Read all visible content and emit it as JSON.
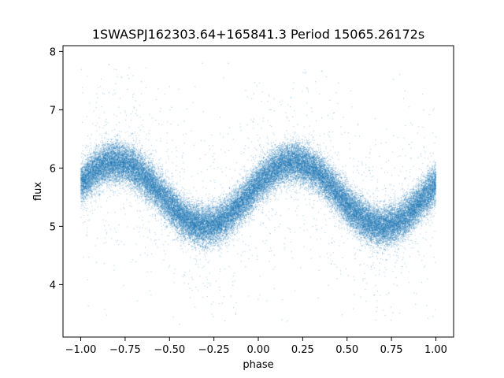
{
  "chart_data": {
    "type": "scatter",
    "title": "1SWASPJ162303.64+165841.3 Period 15065.26172s",
    "xlabel": "phase",
    "ylabel": "flux",
    "xlim": [
      -1.1,
      1.1
    ],
    "ylim": [
      3.1,
      8.1
    ],
    "xticks": [
      -1.0,
      -0.75,
      -0.5,
      -0.25,
      0.0,
      0.25,
      0.5,
      0.75,
      1.0
    ],
    "xtick_labels": [
      "−1.00",
      "−0.75",
      "−0.50",
      "−0.25",
      "0.00",
      "0.25",
      "0.50",
      "0.75",
      "1.00"
    ],
    "yticks": [
      4,
      5,
      6,
      7,
      8
    ],
    "ytick_labels": [
      "4",
      "5",
      "6",
      "7",
      "8"
    ],
    "grid": false,
    "marker_color": "#1f77b4",
    "phase_range": [
      -1.0,
      1.0
    ],
    "model": {
      "description_of_trend": "sinusoidal light curve, two cycles over phase -1 to 1",
      "mean_flux": 5.55,
      "amplitude": 0.55,
      "peak_phase": 0.2,
      "cycles": 2,
      "core_scatter": 0.17,
      "outlier_fraction": 0.04,
      "outlier_range": [
        3.3,
        7.8
      ]
    },
    "n_points": 45000
  }
}
